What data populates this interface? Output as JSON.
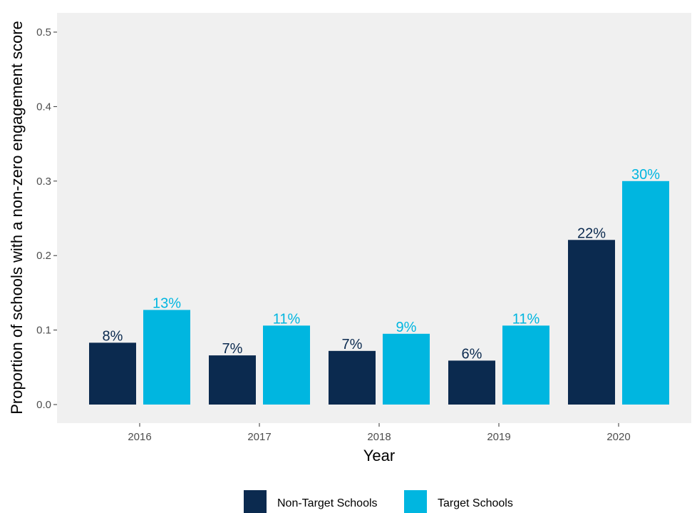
{
  "chart_data": {
    "type": "bar",
    "title": "",
    "xlabel": "Year",
    "ylabel": "Proportion of schools with a non-zero engagement score",
    "categories": [
      "2016",
      "2017",
      "2018",
      "2019",
      "2020"
    ],
    "ylim": [
      0,
      0.5
    ],
    "yticks": [
      "0.0",
      "0.1",
      "0.2",
      "0.3",
      "0.4",
      "0.5"
    ],
    "grid": false,
    "legend_position": "bottom",
    "series": [
      {
        "name": "Non-Target Schools",
        "color": "#0b2a4f",
        "values": [
          0.083,
          0.066,
          0.072,
          0.059,
          0.221
        ],
        "labels": [
          "8%",
          "7%",
          "7%",
          "6%",
          "22%"
        ]
      },
      {
        "name": "Target Schools",
        "color": "#00b6e0",
        "values": [
          0.127,
          0.106,
          0.095,
          0.106,
          0.3
        ],
        "labels": [
          "13%",
          "11%",
          "9%",
          "11%",
          "30%"
        ]
      }
    ],
    "panel_background": "#f0f0f0"
  }
}
